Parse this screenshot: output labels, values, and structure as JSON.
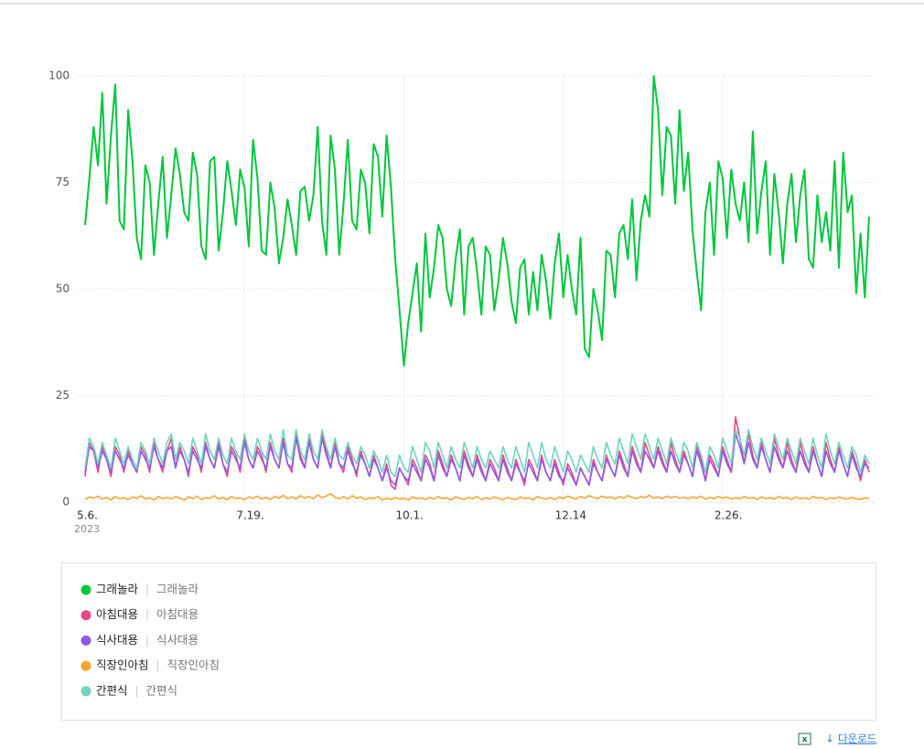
{
  "chart_data": {
    "type": "line",
    "categories": [
      "5.6.",
      null,
      null,
      null,
      null,
      null,
      null,
      null,
      null,
      null,
      null,
      null,
      null,
      null,
      null,
      null,
      null,
      null,
      null,
      null,
      null,
      null,
      null,
      null,
      null,
      null,
      null,
      null,
      null,
      null,
      null,
      null,
      null,
      null,
      null,
      null,
      null,
      "7.19.",
      null,
      null,
      null,
      null,
      null,
      null,
      null,
      null,
      null,
      null,
      null,
      null,
      null,
      null,
      null,
      null,
      null,
      null,
      null,
      null,
      null,
      null,
      null,
      null,
      null,
      null,
      null,
      null,
      null,
      null,
      null,
      null,
      null,
      null,
      null,
      null,
      "10.1.",
      null,
      null,
      null,
      null,
      null,
      null,
      null,
      null,
      null,
      null,
      null,
      null,
      null,
      null,
      null,
      null,
      null,
      null,
      null,
      null,
      null,
      null,
      null,
      null,
      null,
      null,
      null,
      null,
      null,
      null,
      null,
      null,
      null,
      null,
      null,
      null,
      "12.14",
      null,
      null,
      null,
      null,
      null,
      null,
      null,
      null,
      null,
      null,
      null,
      null,
      null,
      null,
      null,
      null,
      null,
      null,
      null,
      null,
      null,
      null,
      null,
      null,
      null,
      null,
      null,
      null,
      null,
      null,
      null,
      null,
      null,
      null,
      null,
      null,
      "2.26.",
      null,
      null,
      null,
      null,
      null,
      null,
      null,
      null,
      null,
      null,
      null,
      null,
      null,
      null,
      null,
      null,
      null,
      null,
      null,
      null,
      null,
      null,
      null,
      null,
      null,
      null,
      null,
      null,
      null,
      null,
      null,
      null,
      null,
      null
    ],
    "x_sublabel": "2023",
    "ylim": [
      0,
      100
    ],
    "yticks": [
      0,
      25,
      50,
      75,
      100
    ],
    "grid": true,
    "series": [
      {
        "name": "그래놀라",
        "keyword": "그래놀라",
        "color": "#00c73c",
        "values": [
          65,
          76,
          88,
          79,
          96,
          70,
          86,
          98,
          66,
          64,
          92,
          80,
          62,
          57,
          79,
          75,
          58,
          70,
          81,
          62,
          72,
          83,
          77,
          68,
          66,
          82,
          77,
          60,
          57,
          80,
          81,
          59,
          68,
          80,
          73,
          65,
          78,
          74,
          60,
          85,
          76,
          59,
          58,
          75,
          69,
          56,
          62,
          71,
          65,
          58,
          73,
          74,
          66,
          72,
          88,
          66,
          58,
          86,
          78,
          58,
          70,
          85,
          66,
          64,
          78,
          75,
          63,
          84,
          81,
          67,
          86,
          74,
          57,
          45,
          32,
          42,
          49,
          56,
          40,
          63,
          48,
          55,
          65,
          62,
          50,
          46,
          57,
          64,
          44,
          60,
          62,
          54,
          44,
          60,
          58,
          45,
          52,
          62,
          56,
          47,
          42,
          55,
          57,
          44,
          54,
          45,
          58,
          52,
          43,
          56,
          63,
          48,
          58,
          50,
          44,
          62,
          36,
          34,
          50,
          45,
          38,
          59,
          58,
          48,
          63,
          65,
          57,
          71,
          52,
          66,
          72,
          67,
          100,
          92,
          72,
          88,
          86,
          70,
          92,
          73,
          82,
          64,
          54,
          45,
          68,
          75,
          58,
          80,
          76,
          62,
          78,
          70,
          66,
          75,
          61,
          87,
          63,
          73,
          80,
          58,
          77,
          68,
          56,
          70,
          77,
          61,
          72,
          78,
          57,
          55,
          72,
          61,
          68,
          59,
          80,
          55,
          82,
          68,
          72,
          49,
          63,
          48,
          67
        ]
      },
      {
        "name": "아침대용",
        "keyword": "아침대용",
        "color": "#e8488a",
        "values": [
          6,
          14,
          12,
          7,
          13,
          10,
          6,
          13,
          11,
          7,
          12,
          9,
          7,
          13,
          11,
          7,
          14,
          10,
          7,
          12,
          15,
          8,
          13,
          10,
          6,
          13,
          11,
          7,
          14,
          10,
          8,
          14,
          9,
          6,
          13,
          11,
          7,
          15,
          10,
          8,
          13,
          11,
          7,
          14,
          10,
          8,
          15,
          9,
          7,
          16,
          11,
          8,
          15,
          10,
          8,
          16,
          12,
          8,
          14,
          9,
          7,
          13,
          10,
          6,
          12,
          9,
          6,
          11,
          8,
          5,
          9,
          4,
          3,
          8,
          6,
          4,
          10,
          8,
          5,
          11,
          9,
          5,
          12,
          9,
          6,
          11,
          8,
          5,
          12,
          9,
          6,
          11,
          8,
          5,
          10,
          8,
          5,
          11,
          8,
          5,
          10,
          7,
          4,
          10,
          8,
          5,
          11,
          7,
          5,
          10,
          7,
          4,
          9,
          7,
          4,
          8,
          6,
          4,
          10,
          7,
          5,
          11,
          8,
          6,
          12,
          9,
          6,
          13,
          10,
          7,
          14,
          11,
          8,
          13,
          10,
          7,
          14,
          10,
          7,
          12,
          9,
          6,
          13,
          10,
          5,
          11,
          9,
          6,
          13,
          10,
          7,
          20,
          15,
          9,
          16,
          11,
          8,
          14,
          10,
          7,
          15,
          11,
          8,
          14,
          10,
          7,
          14,
          10,
          7,
          13,
          9,
          6,
          14,
          10,
          7,
          13,
          9,
          6,
          12,
          9,
          5,
          10,
          7
        ]
      },
      {
        "name": "식사대용",
        "keyword": "식사대용",
        "color": "#8e5ae8",
        "values": [
          7,
          13,
          12,
          8,
          12,
          10,
          7,
          12,
          10,
          8,
          11,
          9,
          7,
          12,
          10,
          8,
          13,
          10,
          8,
          12,
          13,
          8,
          12,
          10,
          7,
          12,
          10,
          8,
          13,
          10,
          8,
          13,
          9,
          7,
          12,
          10,
          8,
          14,
          10,
          8,
          12,
          10,
          8,
          13,
          10,
          8,
          14,
          9,
          8,
          15,
          10,
          8,
          14,
          10,
          8,
          15,
          11,
          8,
          13,
          9,
          8,
          12,
          9,
          7,
          11,
          9,
          6,
          10,
          8,
          5,
          8,
          5,
          4,
          8,
          6,
          5,
          9,
          7,
          5,
          10,
          8,
          5,
          11,
          8,
          6,
          10,
          8,
          5,
          11,
          8,
          6,
          10,
          7,
          5,
          9,
          7,
          5,
          10,
          7,
          5,
          9,
          7,
          5,
          9,
          7,
          5,
          10,
          7,
          5,
          9,
          6,
          5,
          8,
          6,
          4,
          8,
          6,
          4,
          9,
          7,
          5,
          10,
          8,
          6,
          11,
          8,
          6,
          12,
          9,
          7,
          12,
          10,
          8,
          12,
          9,
          7,
          12,
          9,
          7,
          11,
          9,
          6,
          12,
          9,
          5,
          10,
          8,
          6,
          12,
          9,
          7,
          16,
          13,
          9,
          14,
          10,
          8,
          13,
          10,
          7,
          13,
          10,
          8,
          12,
          9,
          7,
          12,
          9,
          7,
          12,
          9,
          6,
          12,
          9,
          7,
          12,
          9,
          6,
          11,
          8,
          6,
          9,
          8
        ]
      },
      {
        "name": "직장인아침",
        "keyword": "직장인아침",
        "color": "#f7a532",
        "values": [
          0.6,
          1.2,
          0.9,
          1.4,
          0.7,
          1.1,
          0.5,
          1.3,
          0.8,
          1.0,
          0.6,
          1.2,
          0.9,
          1.5,
          0.7,
          1.0,
          0.5,
          1.3,
          0.8,
          1.1,
          0.7,
          1.3,
          0.9,
          0.5,
          1.2,
          0.8,
          1.4,
          0.6,
          1.0,
          0.9,
          1.5,
          0.7,
          1.1,
          0.6,
          1.3,
          0.8,
          1.0,
          0.5,
          1.2,
          0.9,
          1.4,
          0.7,
          1.1,
          0.6,
          1.3,
          0.9,
          1.6,
          0.8,
          1.2,
          0.7,
          1.5,
          0.9,
          1.3,
          0.8,
          1.7,
          1.0,
          1.4,
          2.0,
          1.1,
          0.8,
          1.3,
          0.7,
          1.5,
          0.9,
          1.2,
          0.6,
          1.0,
          0.8,
          1.3,
          0.5,
          0.9,
          0.6,
          1.1,
          0.7,
          0.9,
          0.5,
          1.2,
          0.8,
          1.0,
          0.6,
          1.1,
          0.7,
          1.3,
          0.8,
          1.0,
          0.5,
          1.2,
          0.9,
          0.6,
          1.1,
          0.8,
          1.3,
          0.6,
          1.0,
          0.7,
          1.2,
          0.9,
          0.5,
          1.1,
          0.8,
          0.6,
          1.2,
          0.8,
          1.0,
          0.5,
          1.3,
          0.9,
          0.7,
          1.1,
          0.6,
          1.2,
          0.8,
          1.4,
          1.0,
          0.7,
          1.3,
          0.9,
          1.5,
          1.1,
          0.8,
          1.4,
          1.0,
          1.2,
          0.7,
          1.3,
          0.9,
          1.5,
          1.1,
          0.8,
          1.3,
          1.0,
          1.6,
          0.9,
          1.2,
          0.8,
          1.4,
          1.0,
          1.3,
          0.9,
          1.1,
          0.8,
          1.2,
          0.9,
          1.4,
          0.7,
          1.1,
          0.8,
          1.3,
          0.9,
          1.2,
          0.7,
          1.0,
          0.8,
          1.3,
          0.9,
          1.1,
          0.6,
          1.2,
          0.8,
          1.0,
          0.7,
          1.3,
          0.9,
          1.1,
          0.6,
          1.2,
          0.8,
          1.0,
          0.7,
          1.3,
          0.9,
          1.1,
          0.6,
          1.0,
          0.8,
          1.2,
          0.9,
          0.7,
          1.1,
          0.8,
          0.6,
          1.0,
          0.8
        ]
      },
      {
        "name": "간편식",
        "keyword": "간편식",
        "color": "#6dd4bd",
        "values": [
          8,
          15,
          13,
          9,
          14,
          11,
          8,
          15,
          12,
          9,
          13,
          10,
          8,
          14,
          12,
          9,
          15,
          12,
          9,
          14,
          16,
          10,
          14,
          12,
          9,
          15,
          12,
          9,
          16,
          12,
          10,
          15,
          11,
          9,
          15,
          12,
          10,
          16,
          12,
          10,
          15,
          12,
          10,
          16,
          12,
          10,
          17,
          11,
          10,
          17,
          12,
          10,
          16,
          12,
          10,
          17,
          13,
          10,
          15,
          11,
          10,
          14,
          11,
          9,
          13,
          11,
          8,
          12,
          10,
          7,
          11,
          7,
          6,
          11,
          8,
          7,
          13,
          10,
          7,
          14,
          12,
          8,
          14,
          11,
          8,
          13,
          10,
          8,
          14,
          11,
          8,
          13,
          10,
          8,
          12,
          10,
          8,
          13,
          10,
          8,
          13,
          10,
          7,
          14,
          11,
          8,
          14,
          10,
          8,
          13,
          10,
          7,
          12,
          10,
          7,
          11,
          9,
          7,
          13,
          10,
          8,
          14,
          11,
          9,
          15,
          12,
          9,
          16,
          13,
          10,
          16,
          13,
          10,
          15,
          12,
          9,
          15,
          12,
          9,
          14,
          12,
          8,
          14,
          11,
          7,
          13,
          11,
          8,
          15,
          12,
          9,
          17,
          15,
          11,
          17,
          13,
          10,
          15,
          12,
          9,
          16,
          13,
          10,
          15,
          12,
          9,
          15,
          12,
          9,
          15,
          11,
          8,
          16,
          12,
          9,
          14,
          11,
          8,
          13,
          11,
          7,
          11,
          9
        ]
      }
    ],
    "download_label": "다운로드"
  }
}
